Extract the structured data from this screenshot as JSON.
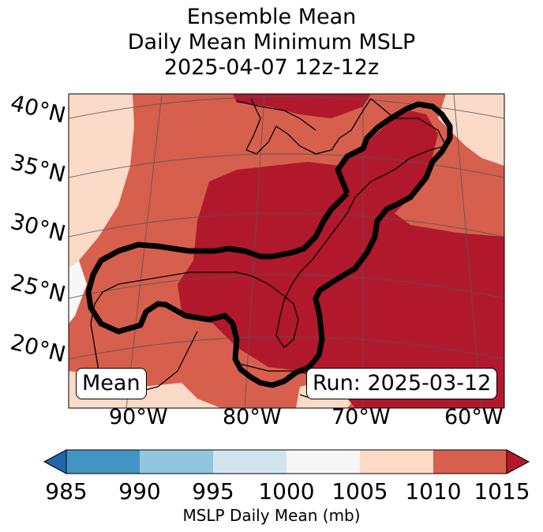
{
  "title": {
    "line1": "Ensemble Mean",
    "line2": "Daily Mean Minimum MSLP",
    "line3": "2025-04-07 12z-12z"
  },
  "map": {
    "lat_labels": [
      "40°N",
      "35°N",
      "30°N",
      "25°N",
      "20°N"
    ],
    "lon_labels": [
      "90°W",
      "80°W",
      "70°W",
      "60°W"
    ],
    "mean_label": "Mean",
    "run_label": "Run: 2025-03-12",
    "colors": {
      "c1005_1010": "#fcdac8",
      "c1010_1015": "#d6604d",
      "c1015_plus": "#b2182b",
      "c1000_1005": "#f7f7f7",
      "contour": "#000000"
    }
  },
  "colorbar": {
    "label": "MSLP Daily Mean (mb)",
    "ticks": [
      "985",
      "990",
      "995",
      "1000",
      "1005",
      "1010",
      "1015"
    ],
    "colors": [
      "#2166ac",
      "#4393c3",
      "#92c5de",
      "#d1e5f0",
      "#f7f7f7",
      "#fddbc7",
      "#d6604d",
      "#b2182b"
    ]
  }
}
